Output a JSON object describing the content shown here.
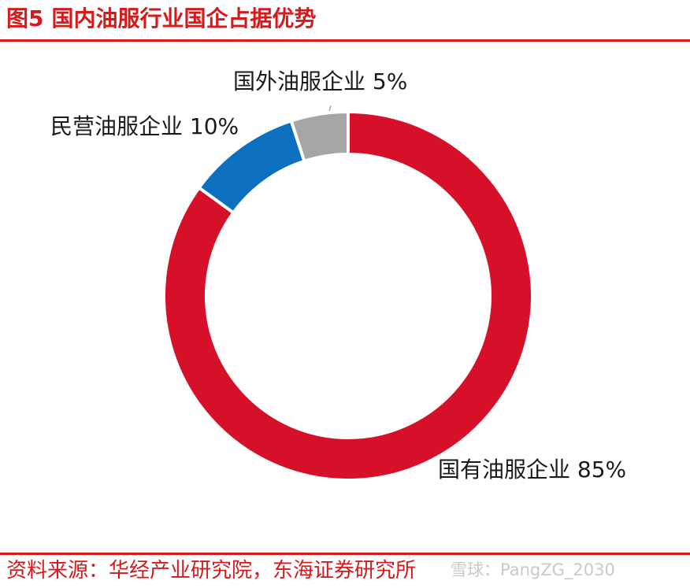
{
  "figure": {
    "title_prefix": "图5",
    "title": "国内油服行业国企占据优势",
    "source": "资料来源：华经产业研究院，东海证券研究所",
    "watermark": "雪球：PangZG_2030"
  },
  "chart_data": {
    "type": "pie",
    "style": "donut",
    "title": "国内油服行业国企占据优势",
    "slices": [
      {
        "label": "国有油服企业",
        "value": 85,
        "color": "#d7102a",
        "label_text": "国有油服企业 85%"
      },
      {
        "label": "民营油服企业",
        "value": 10,
        "color": "#0c6fc0",
        "label_text": "民营油服企业 10%"
      },
      {
        "label": "国外油服企业",
        "value": 5,
        "color": "#a6a6a6",
        "label_text": "国外油服企业 5%"
      }
    ]
  }
}
